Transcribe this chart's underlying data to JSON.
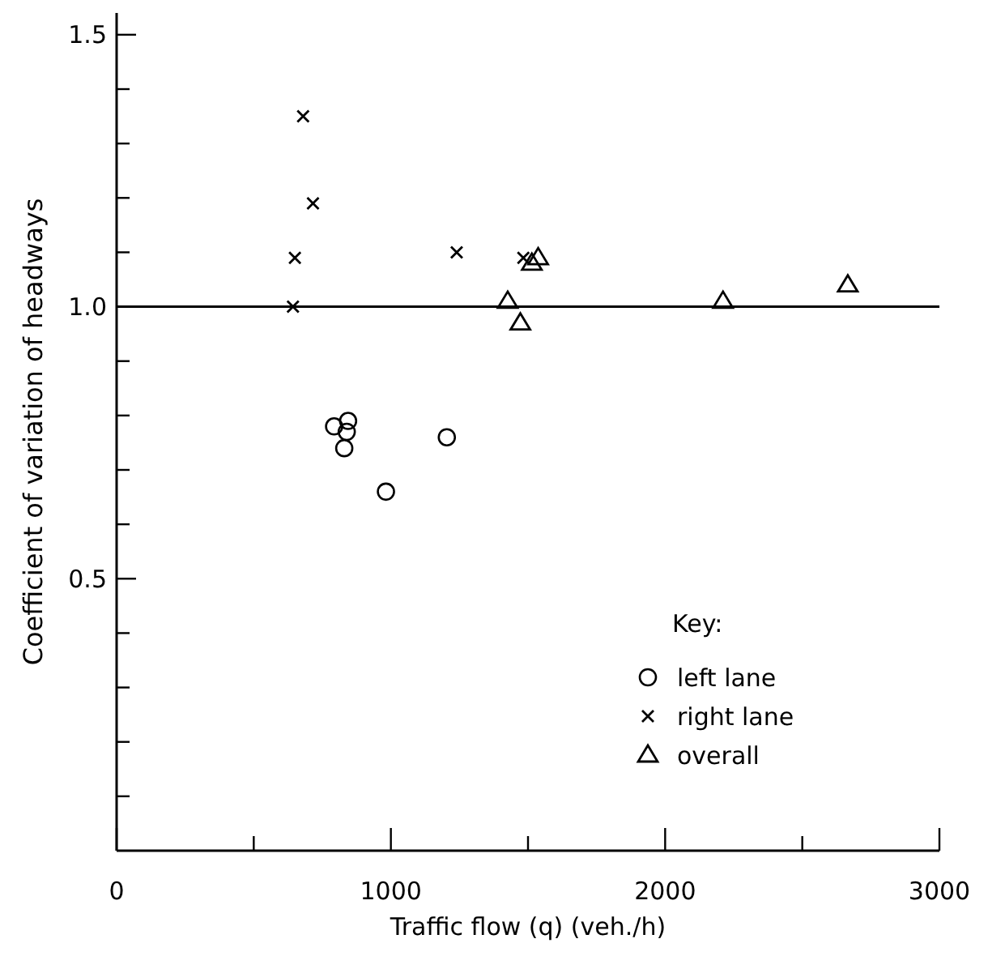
{
  "chart_data": {
    "type": "scatter",
    "xlabel": "Traffic flow  (q) (veh./h)",
    "ylabel": "Coefficient of variation of headways",
    "legend_title": "Key:",
    "legend": "right",
    "xlim": [
      0,
      3000
    ],
    "xticks": [
      0,
      {
        "value": 500,
        "label": null
      },
      1000,
      {
        "value": 1500,
        "label": null
      },
      2000,
      {
        "value": 2500,
        "label": null
      },
      3000
    ],
    "ylim": [
      0,
      1.54
    ],
    "yticks": [
      {
        "value": 0.1,
        "label": null
      },
      {
        "value": 0.2,
        "label": null
      },
      {
        "value": 0.3,
        "label": null
      },
      {
        "value": 0.4,
        "label": null
      },
      {
        "value": 0.5,
        "label": "0.5"
      },
      {
        "value": 0.6,
        "label": null
      },
      {
        "value": 0.7,
        "label": null
      },
      {
        "value": 0.8,
        "label": null
      },
      {
        "value": 0.9,
        "label": null
      },
      {
        "value": 1.0,
        "label": "1.0"
      },
      {
        "value": 1.1,
        "label": null
      },
      {
        "value": 1.2,
        "label": null
      },
      {
        "value": 1.3,
        "label": null
      },
      {
        "value": 1.4,
        "label": null
      },
      {
        "value": 1.5,
        "label": "1.5"
      }
    ],
    "ref_lines": [
      {
        "axis": "y",
        "value": 1.0,
        "color": "#000000"
      }
    ],
    "series": [
      {
        "name": "left lane",
        "color": "#000000",
        "marker": "circle",
        "x": [
          793,
          844,
          839,
          830,
          1204,
          982
        ],
        "values": [
          0.78,
          0.79,
          0.77,
          0.74,
          0.76,
          0.66
        ]
      },
      {
        "name": "right lane",
        "color": "#000000",
        "marker": "cross",
        "x": [
          680,
          716,
          650,
          643,
          1240,
          1483
        ],
        "values": [
          1.35,
          1.19,
          1.09,
          1.0,
          1.1,
          1.09
        ]
      },
      {
        "name": "overall",
        "color": "#000000",
        "marker": "triangle",
        "x": [
          1537,
          1514,
          1426,
          1472,
          2211,
          2666
        ],
        "values": [
          1.09,
          1.08,
          1.01,
          0.97,
          1.01,
          1.04
        ]
      }
    ]
  }
}
